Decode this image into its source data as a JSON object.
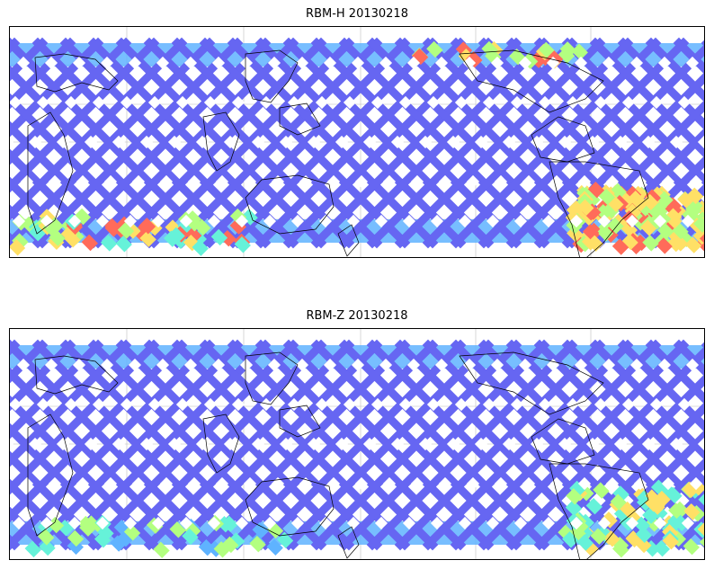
{
  "panels": [
    {
      "title": "RBM-H 20130218",
      "hot_regions": "south-polar-and-south-atlantic-high"
    },
    {
      "title": "RBM-Z 20130218",
      "hot_regions": "south-atlantic-moderate"
    }
  ],
  "colors": {
    "low": "#6666f2",
    "mid_low": "#5fb3ff",
    "mid": "#66f2d9",
    "mid_high": "#b3ff80",
    "high": "#ffe066",
    "very_high": "#ff6b5a",
    "coast": "#000000",
    "grid": "#bdbdbd"
  }
}
